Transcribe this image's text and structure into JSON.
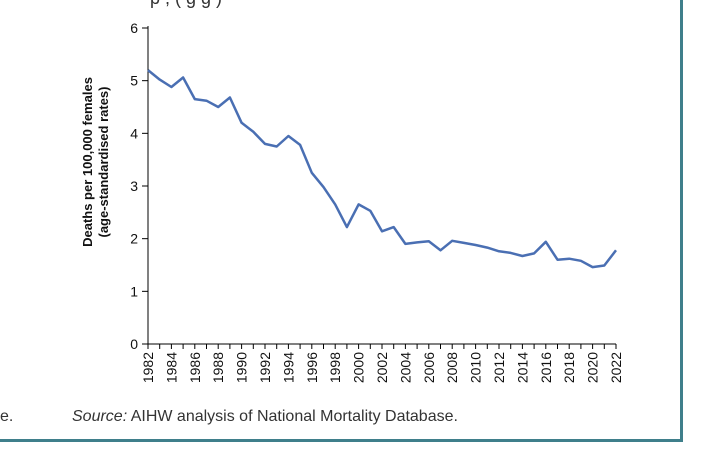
{
  "top_fragment": "p     ,                   (  g     g    )",
  "left_fragment": "e.",
  "source": {
    "label": "Source:",
    "text": " AIHW analysis of National Mortality Database."
  },
  "colors": {
    "line": "#4a6fb3",
    "axis": "#000000",
    "border": "#3f7f8b"
  },
  "chart_data": {
    "type": "line",
    "title": "",
    "xlabel": "",
    "ylabel_line1": "Deaths per 100,000 females",
    "ylabel_line2": "(age-standardised rates)",
    "ylim": [
      0,
      6
    ],
    "yticks": [
      "0",
      "1",
      "2",
      "3",
      "4",
      "5",
      "6"
    ],
    "xticks": [
      "1982",
      "1984",
      "1986",
      "1988",
      "1990",
      "1992",
      "1994",
      "1996",
      "1998",
      "2000",
      "2002",
      "2004",
      "2006",
      "2008",
      "2010",
      "2012",
      "2014",
      "2016",
      "2018",
      "2020",
      "2022"
    ],
    "x": [
      1982,
      1983,
      1984,
      1985,
      1986,
      1987,
      1988,
      1989,
      1990,
      1991,
      1992,
      1993,
      1994,
      1995,
      1996,
      1997,
      1998,
      1999,
      2000,
      2001,
      2002,
      2003,
      2004,
      2005,
      2006,
      2007,
      2008,
      2009,
      2010,
      2011,
      2012,
      2013,
      2014,
      2015,
      2016,
      2017,
      2018,
      2019,
      2020,
      2021,
      2022
    ],
    "values": [
      5.2,
      5.02,
      4.88,
      5.06,
      4.65,
      4.62,
      4.5,
      4.68,
      4.2,
      4.03,
      3.8,
      3.75,
      3.95,
      3.78,
      3.25,
      2.98,
      2.65,
      2.22,
      2.65,
      2.53,
      2.14,
      2.22,
      1.9,
      1.93,
      1.95,
      1.78,
      1.96,
      1.92,
      1.88,
      1.83,
      1.76,
      1.73,
      1.67,
      1.72,
      1.94,
      1.6,
      1.62,
      1.58,
      1.46,
      1.49,
      1.78
    ],
    "grid": false
  }
}
